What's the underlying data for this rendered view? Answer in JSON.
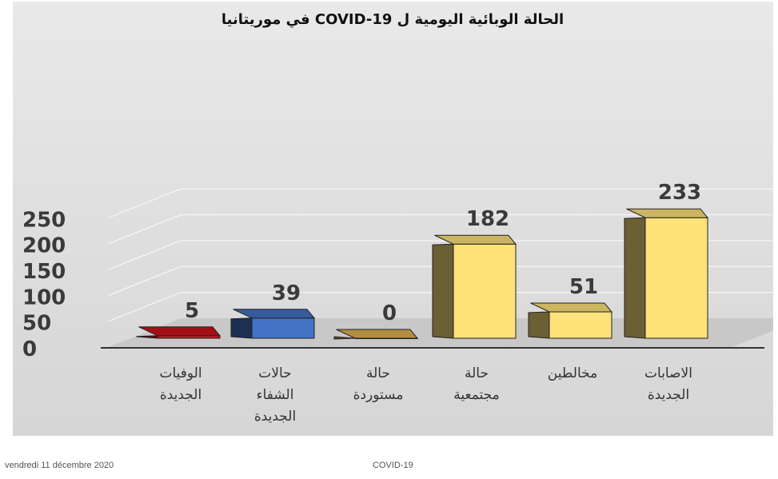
{
  "chart_data": {
    "type": "bar",
    "title": "الحالة الوبائية اليومية  ل    COVID-19 في موريتانيا",
    "xlabel": "",
    "ylabel": "",
    "ylim": [
      0,
      250
    ],
    "yticks": [
      "0",
      "50",
      "100",
      "150",
      "200",
      "250"
    ],
    "grid": true,
    "legend": "none",
    "categories": [
      [
        "الوفيات",
        "الجديدة"
      ],
      [
        "حالات",
        "الشفاء",
        "الجديدة"
      ],
      [
        "حالة",
        "مستوردة"
      ],
      [
        "حالة",
        "مجتمعية"
      ],
      [
        "مخالطين"
      ],
      [
        "الاصابات",
        "الجديدة"
      ]
    ],
    "values": [
      5,
      39,
      0,
      182,
      51,
      233
    ],
    "data_labels": [
      "5",
      "39",
      "0",
      "182",
      "51",
      "233"
    ],
    "colors": [
      "#d0121c",
      "#4472c4",
      "#e0b050",
      "#ffe27a",
      "#ffe27a",
      "#ffe27a"
    ]
  },
  "footer": {
    "date": "vendredi 11 décembre 2020",
    "topic": "COVID-19"
  }
}
